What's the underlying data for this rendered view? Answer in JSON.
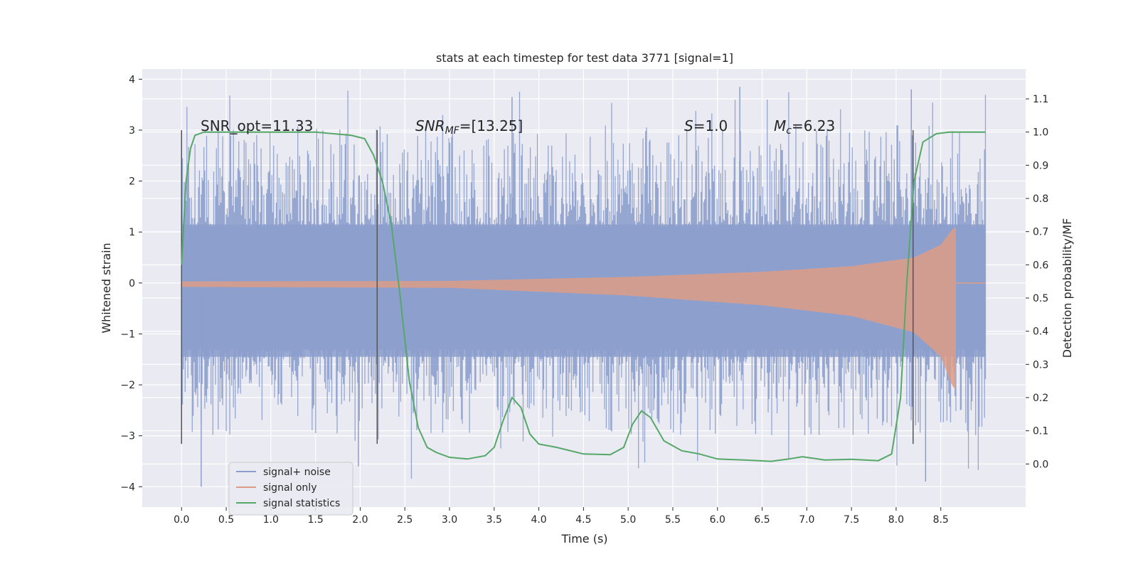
{
  "chart_data": {
    "type": "line",
    "title": "stats at each timestep for test data 3771 [signal=1]",
    "xlabel": "Time (s)",
    "ylabel": "Whitened strain",
    "y2label": "Detection probability/MF",
    "xlim": [
      -0.44,
      9.45
    ],
    "ylim": [
      -4.4,
      4.2
    ],
    "y2lim": [
      -0.13,
      1.19
    ],
    "x_ticks": [
      "0.0",
      "0.5",
      "1.0",
      "1.5",
      "2.0",
      "2.5",
      "3.0",
      "3.5",
      "4.0",
      "4.5",
      "5.0",
      "5.5",
      "6.0",
      "6.5",
      "7.0",
      "7.5",
      "8.0",
      "8.5"
    ],
    "y_ticks": [
      "4",
      "3",
      "2",
      "1",
      "0",
      "−1",
      "−2",
      "−3",
      "−4"
    ],
    "y2_ticks": [
      "1.1",
      "1.0",
      "0.9",
      "0.8",
      "0.7",
      "0.6",
      "0.5",
      "0.4",
      "0.3",
      "0.2",
      "0.1",
      "0.0"
    ],
    "grid": true,
    "legend_position": "lower-left",
    "legend": [
      "signal+ noise",
      "signal only",
      "signal statistics"
    ],
    "annotations": {
      "snr_opt": "SNR_opt=11.33",
      "snr_mf_main": "SNR",
      "snr_mf_sub": "MF",
      "snr_mf_rest": "=[13.25]",
      "s_main": "S",
      "s_rest": "=1.0",
      "mc_main": "M",
      "mc_sub": "c",
      "mc_rest": "=6.23"
    },
    "vertical_markers": [
      0.0,
      2.19,
      8.19
    ],
    "noise": {
      "x_range": [
        0.0,
        9.0
      ],
      "band_y": [
        -1.45,
        1.15
      ],
      "spike_max": 3.85,
      "spike_min": -4.0
    },
    "signal_only": {
      "x_range": [
        0.0,
        8.67
      ],
      "envelope": [
        {
          "x": 0.0,
          "y": 0.03
        },
        {
          "x": 3.0,
          "y": 0.04
        },
        {
          "x": 5.0,
          "y": 0.12
        },
        {
          "x": 6.5,
          "y": 0.22
        },
        {
          "x": 7.5,
          "y": 0.33
        },
        {
          "x": 8.2,
          "y": 0.5
        },
        {
          "x": 8.5,
          "y": 0.75
        },
        {
          "x": 8.65,
          "y": 1.1
        }
      ],
      "after_merger": 0.0
    },
    "series_statistics": [
      {
        "x": 0.0,
        "y": 0.6
      },
      {
        "x": 0.05,
        "y": 0.85
      },
      {
        "x": 0.1,
        "y": 0.95
      },
      {
        "x": 0.15,
        "y": 0.99
      },
      {
        "x": 0.25,
        "y": 1.0
      },
      {
        "x": 1.5,
        "y": 1.0
      },
      {
        "x": 1.9,
        "y": 0.99
      },
      {
        "x": 2.05,
        "y": 0.98
      },
      {
        "x": 2.15,
        "y": 0.93
      },
      {
        "x": 2.25,
        "y": 0.85
      },
      {
        "x": 2.35,
        "y": 0.72
      },
      {
        "x": 2.45,
        "y": 0.5
      },
      {
        "x": 2.55,
        "y": 0.25
      },
      {
        "x": 2.65,
        "y": 0.11
      },
      {
        "x": 2.75,
        "y": 0.05
      },
      {
        "x": 2.85,
        "y": 0.035
      },
      {
        "x": 3.0,
        "y": 0.02
      },
      {
        "x": 3.2,
        "y": 0.015
      },
      {
        "x": 3.4,
        "y": 0.025
      },
      {
        "x": 3.5,
        "y": 0.05
      },
      {
        "x": 3.6,
        "y": 0.13
      },
      {
        "x": 3.7,
        "y": 0.2
      },
      {
        "x": 3.8,
        "y": 0.17
      },
      {
        "x": 3.9,
        "y": 0.09
      },
      {
        "x": 4.0,
        "y": 0.06
      },
      {
        "x": 4.2,
        "y": 0.05
      },
      {
        "x": 4.5,
        "y": 0.03
      },
      {
        "x": 4.8,
        "y": 0.028
      },
      {
        "x": 4.95,
        "y": 0.05
      },
      {
        "x": 5.05,
        "y": 0.12
      },
      {
        "x": 5.15,
        "y": 0.16
      },
      {
        "x": 5.25,
        "y": 0.14
      },
      {
        "x": 5.4,
        "y": 0.07
      },
      {
        "x": 5.6,
        "y": 0.04
      },
      {
        "x": 5.8,
        "y": 0.03
      },
      {
        "x": 6.0,
        "y": 0.015
      },
      {
        "x": 6.3,
        "y": 0.012
      },
      {
        "x": 6.6,
        "y": 0.008
      },
      {
        "x": 6.8,
        "y": 0.015
      },
      {
        "x": 6.95,
        "y": 0.022
      },
      {
        "x": 7.2,
        "y": 0.012
      },
      {
        "x": 7.5,
        "y": 0.014
      },
      {
        "x": 7.8,
        "y": 0.01
      },
      {
        "x": 7.95,
        "y": 0.03
      },
      {
        "x": 8.05,
        "y": 0.2
      },
      {
        "x": 8.12,
        "y": 0.55
      },
      {
        "x": 8.2,
        "y": 0.85
      },
      {
        "x": 8.3,
        "y": 0.97
      },
      {
        "x": 8.45,
        "y": 0.995
      },
      {
        "x": 8.6,
        "y": 1.0
      },
      {
        "x": 9.0,
        "y": 1.0
      }
    ],
    "colors": {
      "noise": "#8c9fcc",
      "signal": "#dd9c86",
      "statistics": "#55a868",
      "background": "#eaeaf2",
      "grid": "#ffffff",
      "marker": "#555555"
    }
  }
}
